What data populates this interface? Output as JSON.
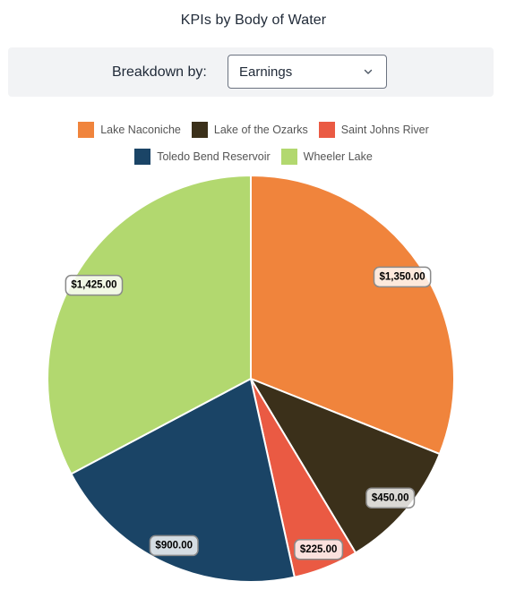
{
  "title": "KPIs by Body of Water",
  "filter": {
    "label": "Breakdown by:",
    "selected": "Earnings"
  },
  "chart_data": {
    "type": "pie",
    "title": "KPIs by Body of Water",
    "categories": [
      "Lake Naconiche",
      "Lake of the Ozarks",
      "Saint Johns River",
      "Toledo Bend Reservoir",
      "Wheeler Lake"
    ],
    "values": [
      1350,
      450,
      225,
      900,
      1425
    ],
    "value_labels": [
      "$1,350.00",
      "$450.00",
      "$225.00",
      "$900.00",
      "$1,425.00"
    ],
    "colors": [
      "#f0843c",
      "#3b301a",
      "#ea5a43",
      "#1a4466",
      "#b2d86f"
    ],
    "legend_position": "top"
  },
  "legend": {
    "rows": [
      [
        {
          "label": "Lake Naconiche",
          "color": "#f0843c"
        },
        {
          "label": "Lake of the Ozarks",
          "color": "#3b301a"
        },
        {
          "label": "Saint Johns River",
          "color": "#ea5a43"
        }
      ],
      [
        {
          "label": "Toledo Bend Reservoir",
          "color": "#1a4466"
        },
        {
          "label": "Wheeler Lake",
          "color": "#b2d86f"
        }
      ]
    ]
  }
}
